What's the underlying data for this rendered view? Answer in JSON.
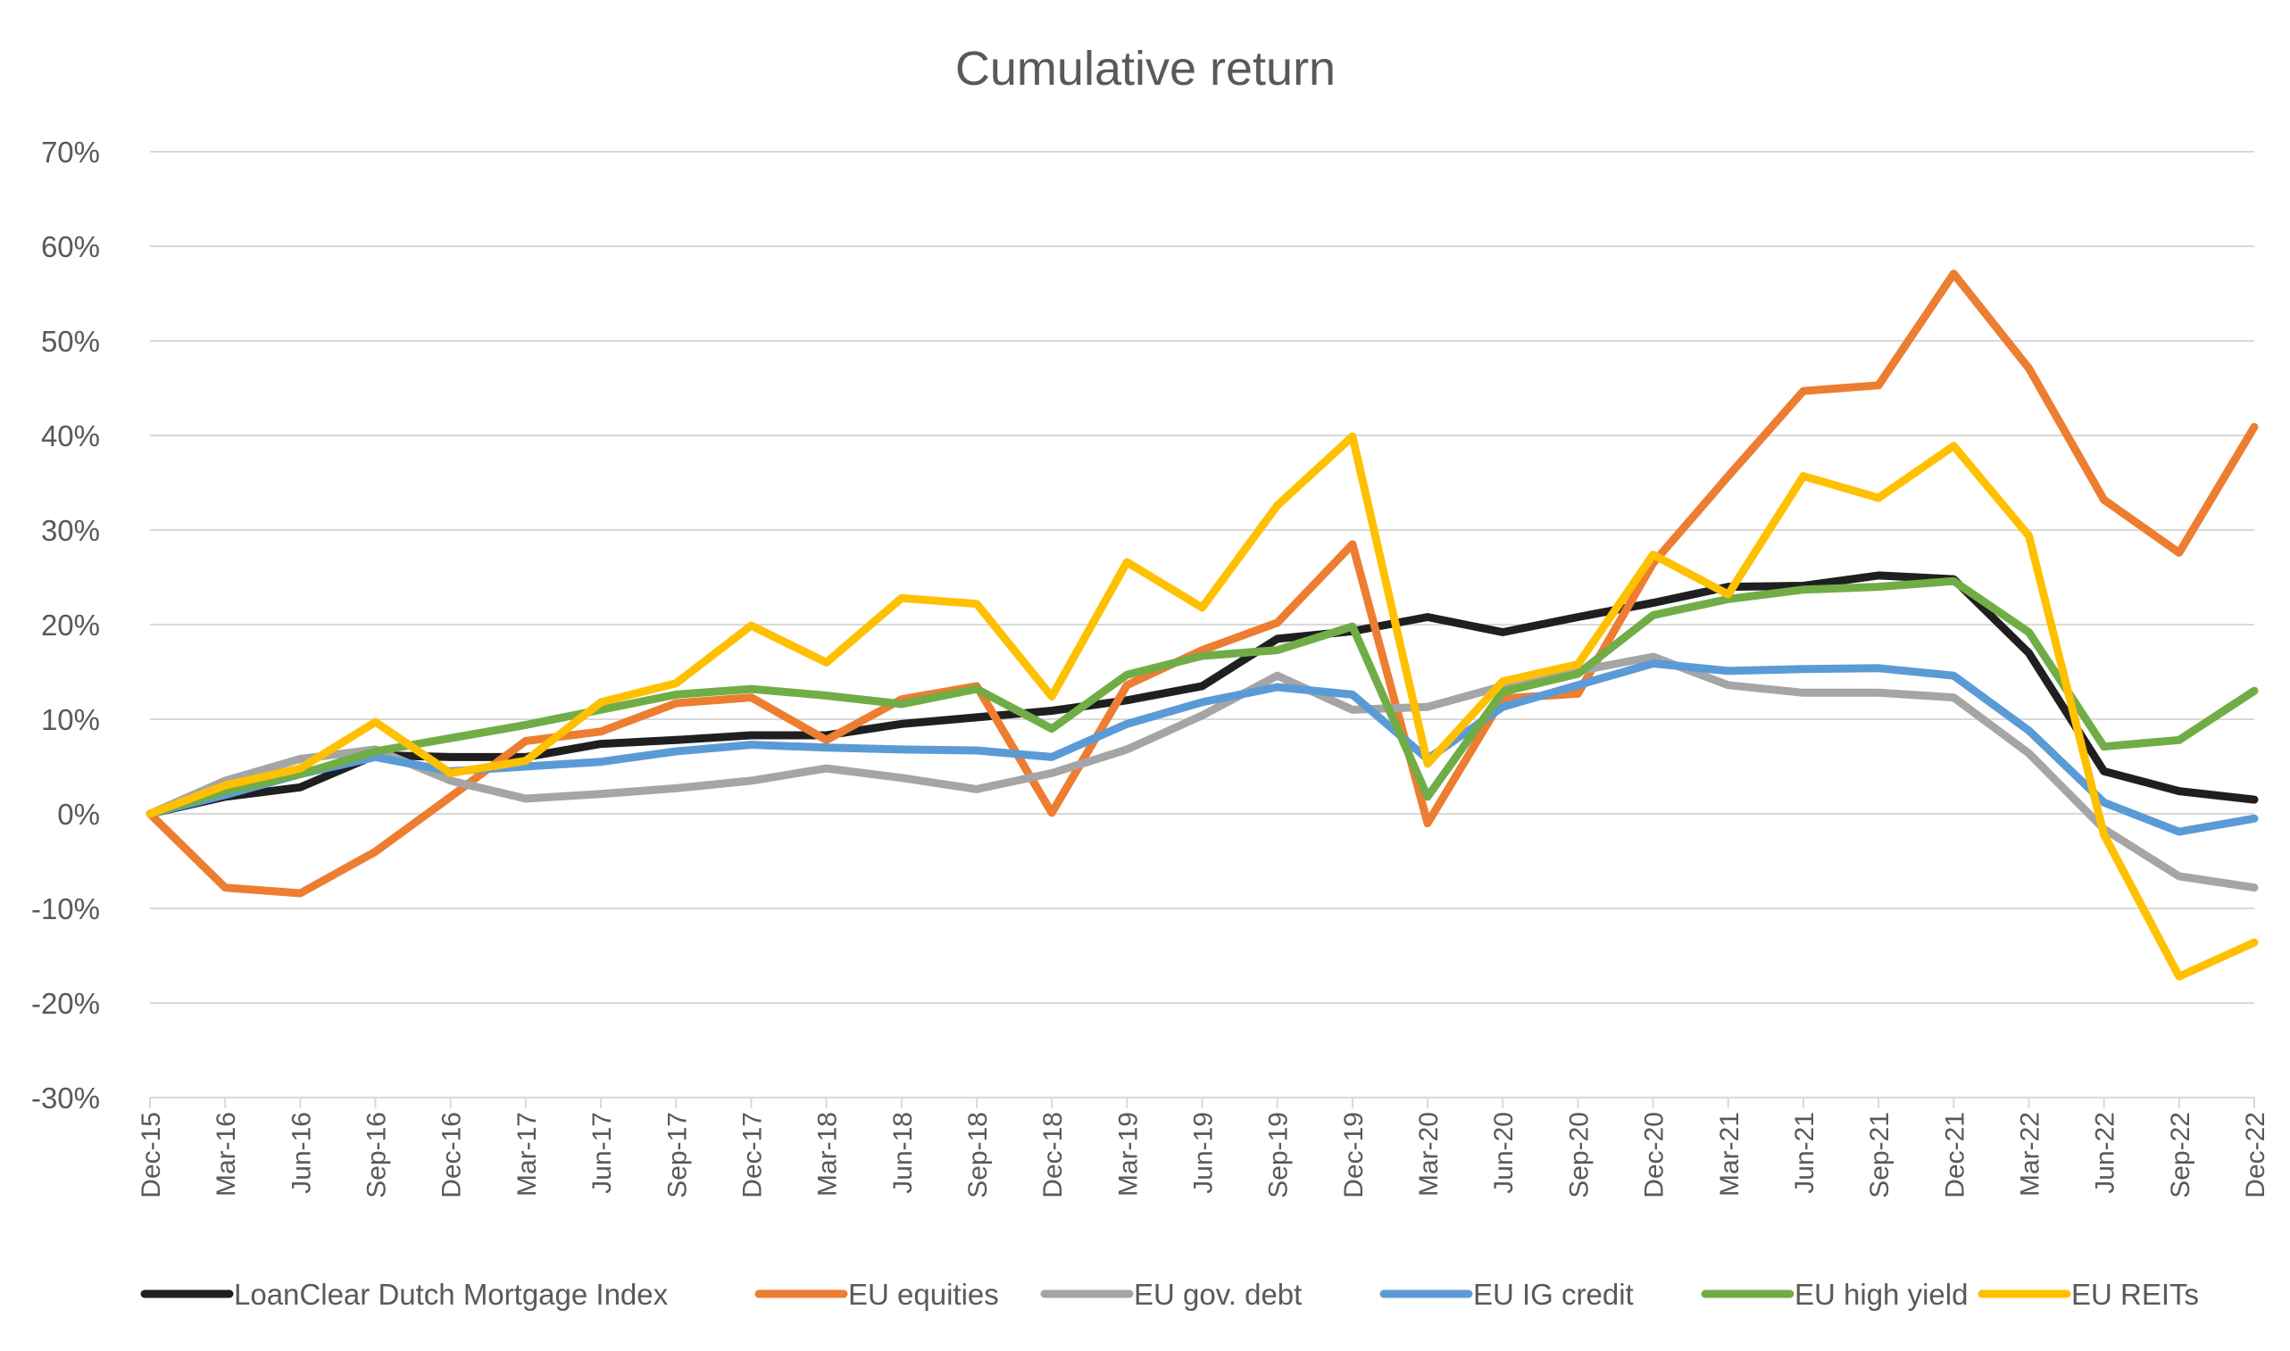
{
  "chart_data": {
    "type": "line",
    "title": "Cumulative return",
    "xlabel": "",
    "ylabel": "",
    "ylim": [
      -30,
      70
    ],
    "yticks": [
      70,
      60,
      50,
      40,
      30,
      20,
      10,
      0,
      -10,
      -20,
      -30
    ],
    "ytick_labels": [
      "70%",
      "60%",
      "50%",
      "40%",
      "30%",
      "20%",
      "10%",
      "0%",
      "-10%",
      "-20%",
      "-30%"
    ],
    "grid": "horizontal",
    "legend_position": "bottom",
    "x": [
      "Dec-15",
      "Mar-16",
      "Jun-16",
      "Sep-16",
      "Dec-16",
      "Mar-17",
      "Jun-17",
      "Sep-17",
      "Dec-17",
      "Mar-18",
      "Jun-18",
      "Sep-18",
      "Dec-18",
      "Mar-19",
      "Jun-19",
      "Sep-19",
      "Dec-19",
      "Mar-20",
      "Jun-20",
      "Sep-20",
      "Dec-20",
      "Mar-21",
      "Jun-21",
      "Sep-21",
      "Dec-21",
      "Mar-22",
      "Jun-22",
      "Sep-22",
      "Dec-22"
    ],
    "series": [
      {
        "name": "LoanClear Dutch Mortgage Index",
        "color": "#1f1f1f",
        "values": [
          0,
          1.8,
          2.8,
          6.2,
          6.0,
          6.0,
          7.4,
          7.8,
          8.3,
          8.3,
          9.5,
          10.2,
          10.9,
          12.0,
          13.5,
          18.5,
          19.3,
          20.8,
          19.2,
          20.8,
          22.3,
          24.0,
          24.1,
          25.2,
          24.8,
          17.0,
          4.5,
          2.4,
          1.5
        ]
      },
      {
        "name": "EU equities",
        "color": "#ED7D31",
        "values": [
          0,
          -7.8,
          -8.4,
          -4.0,
          1.8,
          7.7,
          8.7,
          11.7,
          12.3,
          7.8,
          12.1,
          13.5,
          0.1,
          13.6,
          17.3,
          20.2,
          28.5,
          -1.0,
          12.2,
          12.7,
          26.5,
          35.7,
          44.7,
          45.3,
          57.1,
          47.1,
          33.2,
          27.6,
          40.9
        ]
      },
      {
        "name": "EU gov. debt",
        "color": "#A5A5A5",
        "values": [
          0,
          3.5,
          5.8,
          6.8,
          3.5,
          1.6,
          2.1,
          2.7,
          3.5,
          4.8,
          3.8,
          2.6,
          4.3,
          6.8,
          10.4,
          14.6,
          11.0,
          11.3,
          13.5,
          15.1,
          16.6,
          13.6,
          12.8,
          12.8,
          12.3,
          6.4,
          -1.6,
          -6.6,
          -7.8
        ]
      },
      {
        "name": "EU IG credit",
        "color": "#5B9BD5",
        "values": [
          0,
          2.0,
          4.2,
          6.0,
          4.5,
          5.0,
          5.5,
          6.6,
          7.3,
          7.0,
          6.8,
          6.7,
          6.0,
          9.5,
          11.8,
          13.4,
          12.6,
          5.8,
          11.3,
          13.6,
          15.9,
          15.1,
          15.3,
          15.4,
          14.6,
          8.8,
          1.2,
          -1.9,
          -0.5
        ]
      },
      {
        "name": "EU high yield",
        "color": "#70AD47",
        "values": [
          0,
          2.4,
          4.2,
          6.6,
          8.0,
          9.4,
          11.0,
          12.6,
          13.2,
          12.5,
          11.6,
          13.2,
          9.0,
          14.7,
          16.7,
          17.3,
          19.8,
          1.8,
          12.9,
          14.8,
          21.0,
          22.7,
          23.7,
          24.0,
          24.6,
          19.2,
          7.1,
          7.8,
          13.0
        ]
      },
      {
        "name": "EU REITs",
        "color": "#FFC000",
        "values": [
          0,
          3.0,
          4.8,
          9.7,
          4.3,
          5.6,
          11.8,
          13.8,
          19.9,
          16.0,
          22.8,
          22.2,
          12.4,
          26.6,
          21.8,
          32.6,
          39.9,
          5.3,
          14.0,
          15.8,
          27.4,
          23.2,
          35.7,
          33.4,
          38.9,
          29.4,
          -2.2,
          -17.2,
          -13.6
        ]
      }
    ]
  }
}
